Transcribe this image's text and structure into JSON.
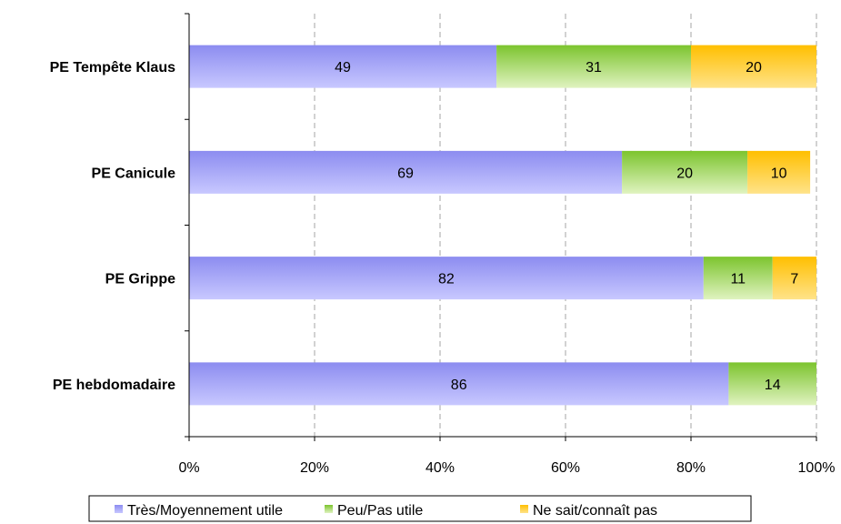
{
  "chart_data": {
    "type": "bar",
    "orientation": "horizontal",
    "stacked": true,
    "categories": [
      "PE Tempête Klaus",
      "PE Canicule",
      "PE Grippe",
      "PE hebdomadaire"
    ],
    "series": [
      {
        "name": "Très/Moyennement utile",
        "values": [
          49,
          69,
          82,
          86
        ],
        "color": "#9b9bf5"
      },
      {
        "name": "Peu/Pas utile",
        "values": [
          31,
          20,
          11,
          14
        ],
        "color": "#8fcf3f"
      },
      {
        "name": "Ne sait/connaît pas",
        "values": [
          20,
          10,
          7,
          0
        ],
        "color": "#ffc61a"
      }
    ],
    "x_ticks": [
      "0%",
      "20%",
      "40%",
      "60%",
      "80%",
      "100%"
    ],
    "xlim": [
      0,
      100
    ],
    "grid": "vertical dashed",
    "legend_position": "bottom"
  }
}
